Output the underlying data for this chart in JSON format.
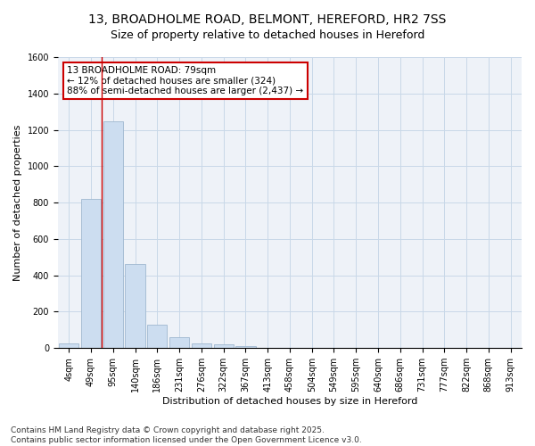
{
  "title_line1": "13, BROADHOLME ROAD, BELMONT, HEREFORD, HR2 7SS",
  "title_line2": "Size of property relative to detached houses in Hereford",
  "xlabel": "Distribution of detached houses by size in Hereford",
  "ylabel": "Number of detached properties",
  "bar_color": "#ccddf0",
  "bar_edge_color": "#a0b8d0",
  "grid_color": "#c8d8e8",
  "background_color": "#eef2f8",
  "categories": [
    "4sqm",
    "49sqm",
    "95sqm",
    "140sqm",
    "186sqm",
    "231sqm",
    "276sqm",
    "322sqm",
    "367sqm",
    "413sqm",
    "458sqm",
    "504sqm",
    "549sqm",
    "595sqm",
    "640sqm",
    "686sqm",
    "731sqm",
    "777sqm",
    "822sqm",
    "868sqm",
    "913sqm"
  ],
  "values": [
    25,
    820,
    1245,
    460,
    130,
    60,
    28,
    20,
    13,
    0,
    0,
    0,
    0,
    0,
    0,
    0,
    0,
    0,
    0,
    0,
    0
  ],
  "annotation_box_text": "13 BROADHOLME ROAD: 79sqm\n← 12% of detached houses are smaller (324)\n88% of semi-detached houses are larger (2,437) →",
  "vline_color": "#cc0000",
  "vline_x_index": 1.5,
  "ylim": [
    0,
    1600
  ],
  "yticks": [
    0,
    200,
    400,
    600,
    800,
    1000,
    1200,
    1400,
    1600
  ],
  "footnote": "Contains HM Land Registry data © Crown copyright and database right 2025.\nContains public sector information licensed under the Open Government Licence v3.0.",
  "title_fontsize": 10,
  "subtitle_fontsize": 9,
  "label_fontsize": 8,
  "tick_fontsize": 7,
  "annot_fontsize": 7.5,
  "footnote_fontsize": 6.5
}
